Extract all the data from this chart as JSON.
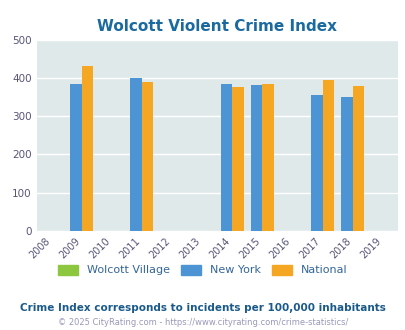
{
  "title": "Wolcott Violent Crime Index",
  "title_color": "#1a6aa0",
  "years": [
    2008,
    2009,
    2010,
    2011,
    2012,
    2013,
    2014,
    2015,
    2016,
    2017,
    2018,
    2019
  ],
  "bar_years": [
    2009,
    2011,
    2014,
    2015,
    2017,
    2018
  ],
  "newyork_values": [
    385,
    400,
    383,
    381,
    355,
    350
  ],
  "national_values": [
    432,
    388,
    377,
    383,
    394,
    380
  ],
  "wolcott_color": "#8dc63f",
  "newyork_color": "#4d94d5",
  "national_color": "#f5a623",
  "bar_width": 0.38,
  "ylim": [
    0,
    500
  ],
  "yticks": [
    0,
    100,
    200,
    300,
    400,
    500
  ],
  "bg_color": "#dfe9ea",
  "grid_color": "#ffffff",
  "legend_labels": [
    "Wolcott Village",
    "New York",
    "National"
  ],
  "legend_text_color": "#336699",
  "note": "Crime Index corresponds to incidents per 100,000 inhabitants",
  "note_color": "#1a5a8a",
  "copyright": "© 2025 CityRating.com - https://www.cityrating.com/crime-statistics/",
  "copyright_color": "#9999bb",
  "tick_label_color": "#555577"
}
